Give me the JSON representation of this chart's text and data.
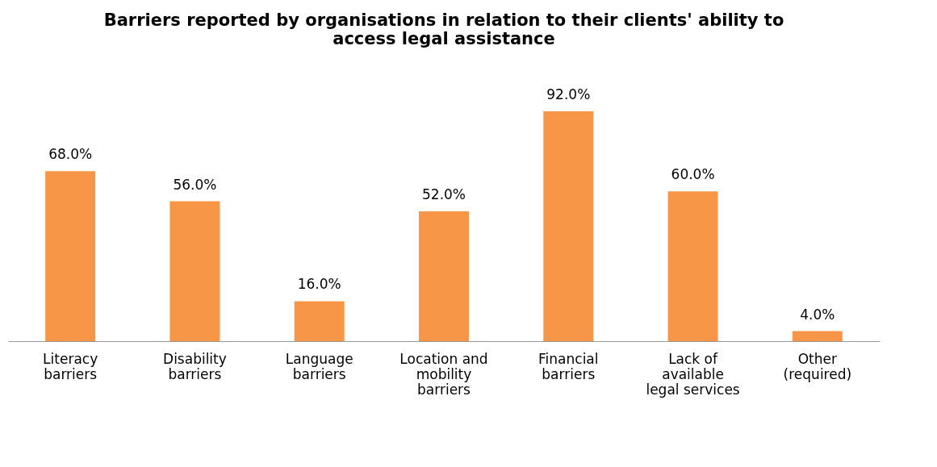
{
  "chart_data": {
    "type": "bar",
    "title": "Barriers reported by organisations in relation to their clients' ability to access legal assistance",
    "categories": [
      "Literacy barriers",
      "Disability barriers",
      "Language barriers",
      "Location and mobility barriers",
      "Financial barriers",
      "Lack of available legal services",
      "Other (required)"
    ],
    "values": [
      68.0,
      56.0,
      16.0,
      52.0,
      92.0,
      60.0,
      4.0
    ],
    "value_labels": [
      "68.0%",
      "56.0%",
      "16.0%",
      "52.0%",
      "92.0%",
      "60.0%",
      "4.0%"
    ],
    "color": "#f79646"
  }
}
